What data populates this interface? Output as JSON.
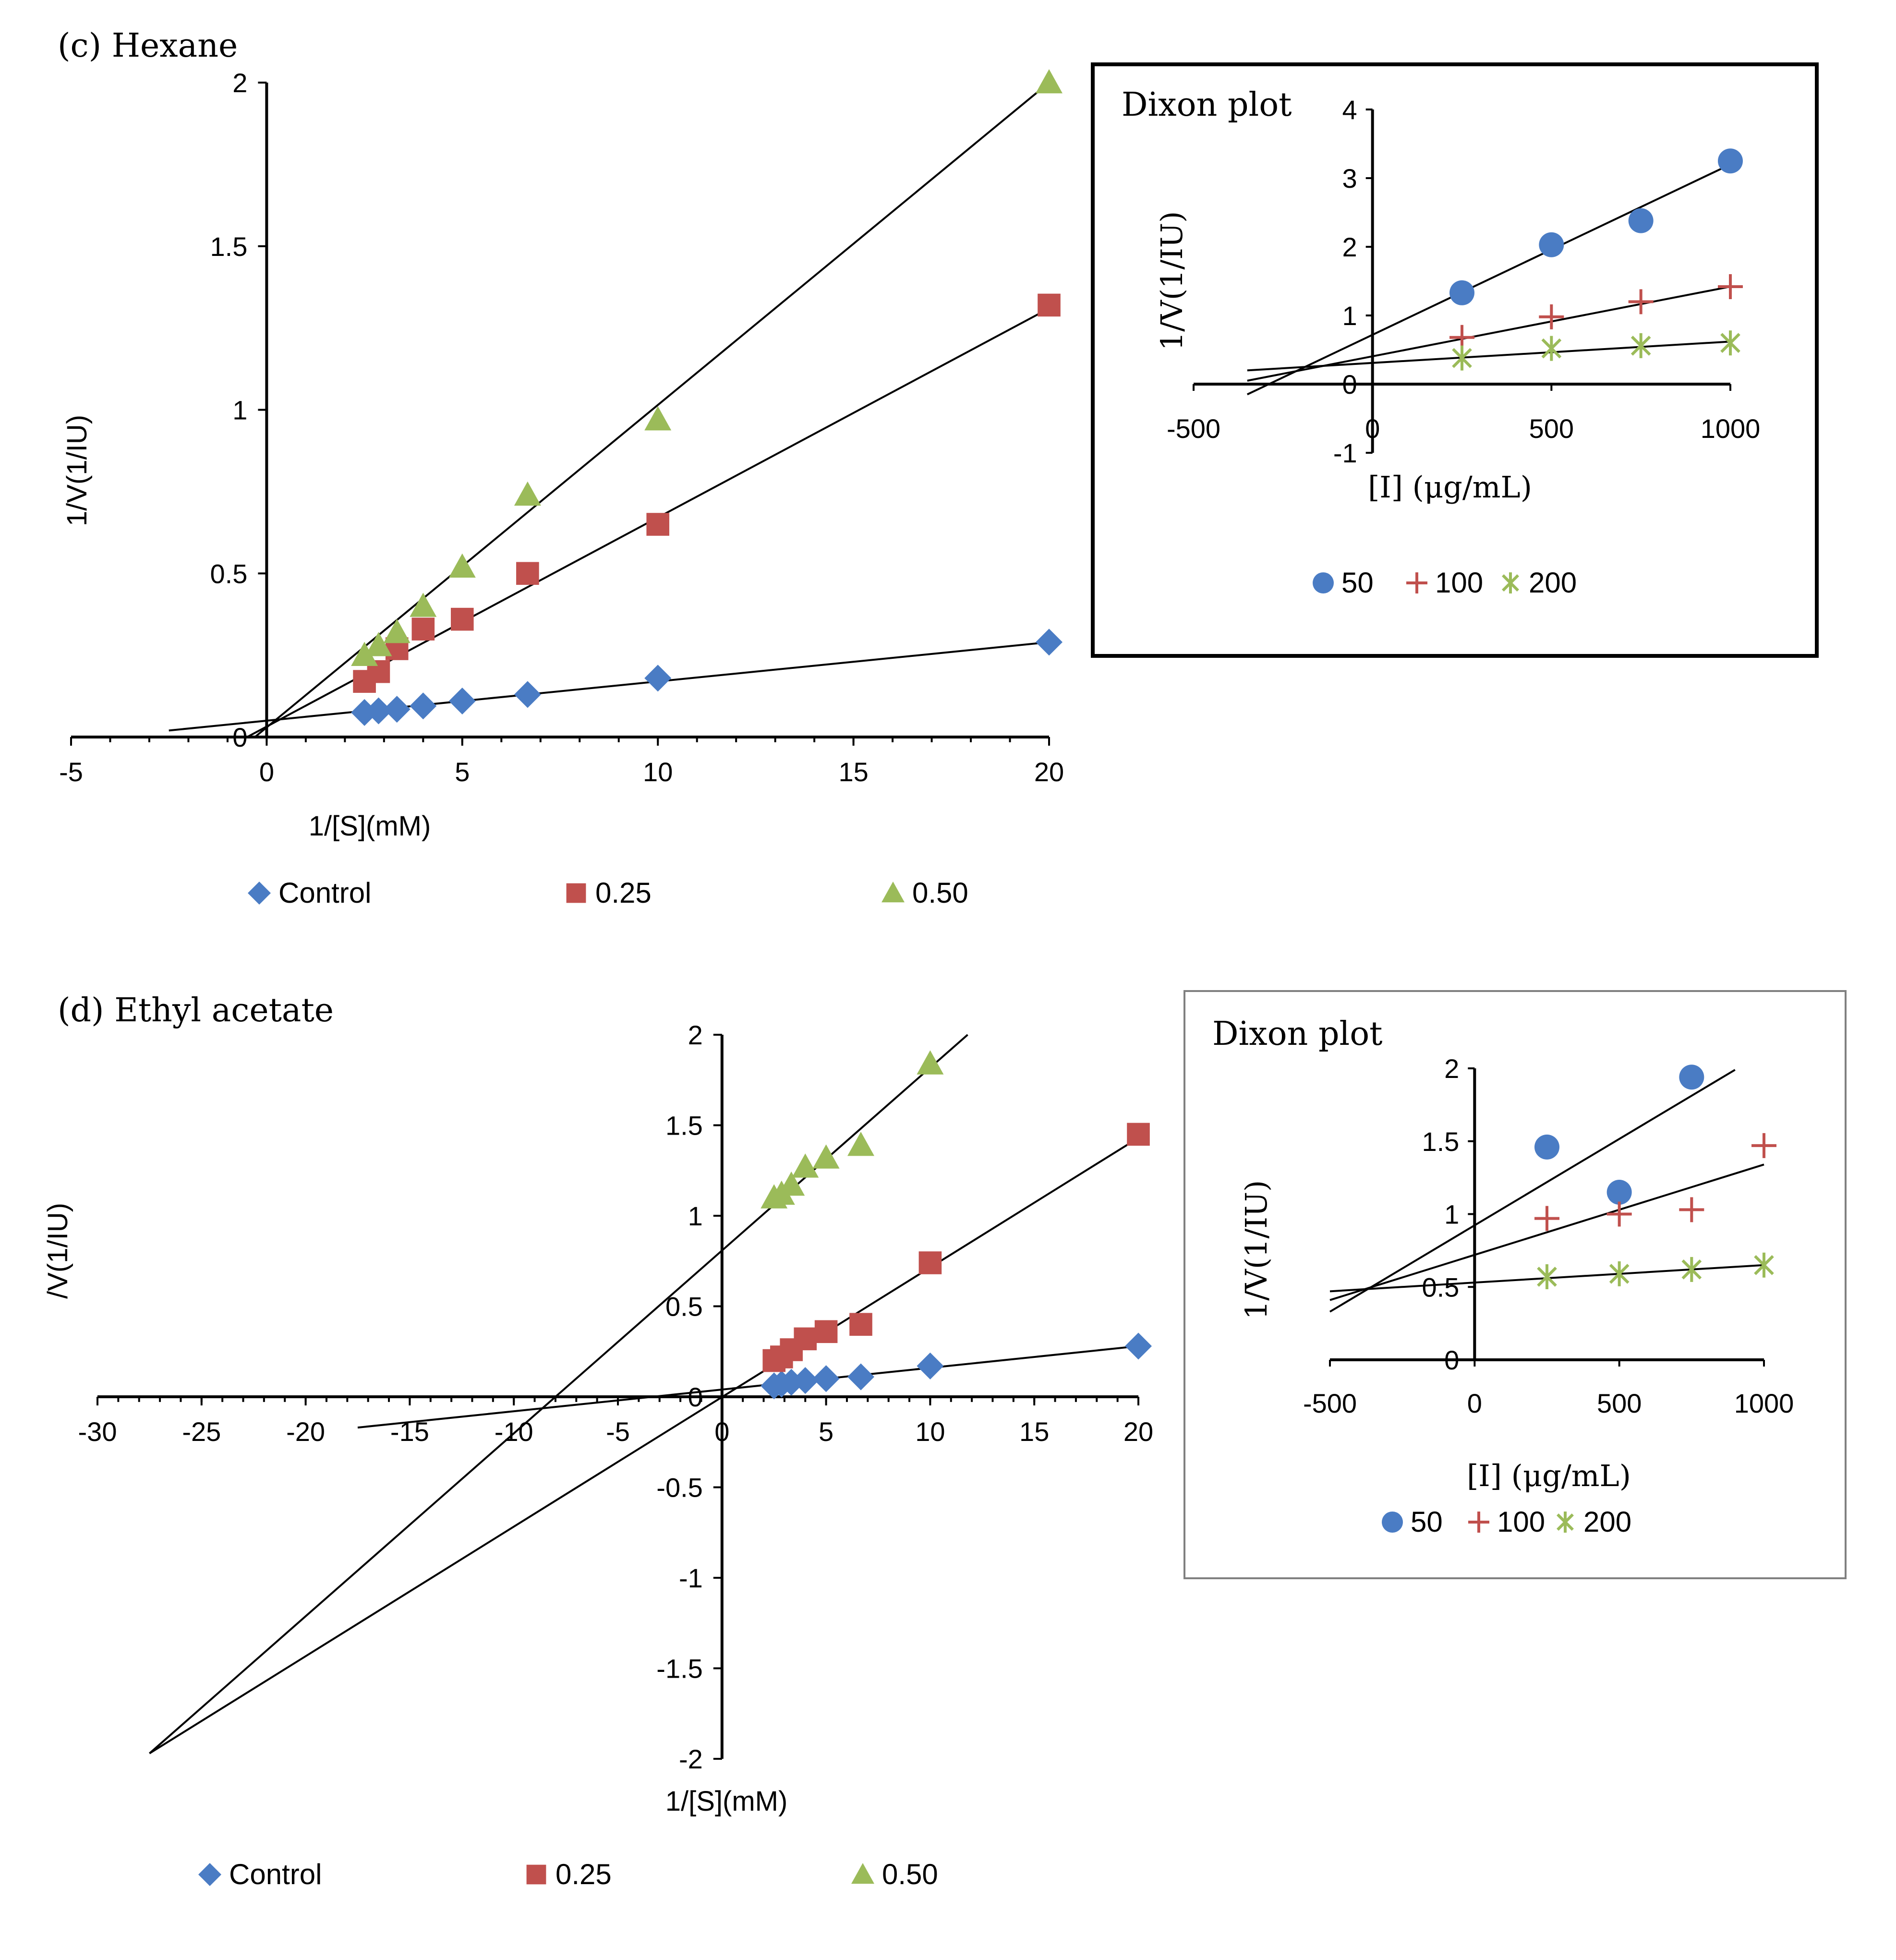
{
  "colors": {
    "blue": "#4a7cc4",
    "red": "#c0504d",
    "green": "#9bbb59",
    "axis": "#000000"
  },
  "chart_data": [
    {
      "id": "hexane",
      "type": "scatter",
      "panel_label": "(c) Hexane",
      "title": "",
      "xlabel": "1/[S](mM)",
      "ylabel": "1/V(1/IU)",
      "xlim": [
        -5,
        20
      ],
      "ylim": [
        0,
        2
      ],
      "xticks": [
        -5,
        0,
        5,
        10,
        15,
        20
      ],
      "yticks": [
        0,
        0.5,
        1,
        1.5,
        2
      ],
      "xtick_labels": [
        "-5",
        "0",
        "5",
        "10",
        "15",
        "20"
      ],
      "ytick_labels": [
        "0",
        "0.5",
        "1",
        "1.5",
        "2"
      ],
      "legend": [
        "Control",
        "0.25",
        "0.50"
      ],
      "series": [
        {
          "name": "Control",
          "marker": "diamond",
          "color": "#4a7cc4",
          "x": [
            2.5,
            2.86,
            3.33,
            4,
            5,
            6.67,
            10,
            20
          ],
          "y": [
            0.075,
            0.08,
            0.085,
            0.095,
            0.11,
            0.13,
            0.18,
            0.29
          ],
          "fit": {
            "x": [
              -2.5,
              20
            ],
            "y": [
              0.02,
              0.29
            ]
          }
        },
        {
          "name": "0.25",
          "marker": "square",
          "color": "#c0504d",
          "x": [
            2.5,
            2.86,
            3.33,
            4,
            5,
            6.67,
            10,
            20
          ],
          "y": [
            0.17,
            0.2,
            0.27,
            0.33,
            0.36,
            0.5,
            0.65,
            1.32
          ],
          "fit": {
            "x": [
              -0.5,
              20
            ],
            "y": [
              0.0,
              1.31
            ]
          }
        },
        {
          "name": "0.50",
          "marker": "triangle",
          "color": "#9bbb59",
          "x": [
            2.5,
            2.86,
            3.33,
            4,
            5,
            6.67,
            10,
            20
          ],
          "y": [
            0.25,
            0.28,
            0.32,
            0.4,
            0.52,
            0.74,
            0.97,
            2.0
          ],
          "fit": {
            "x": [
              -0.3,
              20
            ],
            "y": [
              0.0,
              2.0
            ]
          }
        }
      ]
    },
    {
      "id": "hexane-dixon",
      "type": "scatter",
      "title": "Dixon plot",
      "xlabel": "[I] (μg/mL)",
      "ylabel": "1/V(1/IU)",
      "xlim": [
        -500,
        1000
      ],
      "ylim": [
        -1,
        4
      ],
      "xticks": [
        -500,
        0,
        500,
        1000
      ],
      "yticks": [
        -1,
        0,
        1,
        2,
        3,
        4
      ],
      "xtick_labels": [
        "-500",
        "0",
        "500",
        "1000"
      ],
      "ytick_labels": [
        "-1",
        "0",
        "1",
        "2",
        "3",
        "4"
      ],
      "legend": [
        "50",
        "100",
        "200"
      ],
      "series": [
        {
          "name": "50",
          "marker": "circle",
          "color": "#4a7cc4",
          "x": [
            250,
            500,
            750,
            1000
          ],
          "y": [
            1.33,
            2.03,
            2.38,
            3.25
          ],
          "fit": {
            "x": [
              -350,
              1000
            ],
            "y": [
              -0.15,
              3.2
            ]
          }
        },
        {
          "name": "100",
          "marker": "plus",
          "color": "#c0504d",
          "x": [
            250,
            500,
            750,
            1000
          ],
          "y": [
            0.68,
            0.98,
            1.2,
            1.42
          ],
          "fit": {
            "x": [
              -350,
              1000
            ],
            "y": [
              0.05,
              1.42
            ]
          }
        },
        {
          "name": "200",
          "marker": "asterisk",
          "color": "#9bbb59",
          "x": [
            250,
            500,
            750,
            1000
          ],
          "y": [
            0.38,
            0.52,
            0.56,
            0.6
          ],
          "fit": {
            "x": [
              -350,
              1000
            ],
            "y": [
              0.2,
              0.62
            ]
          }
        }
      ]
    },
    {
      "id": "ethyl-acetate",
      "type": "scatter",
      "panel_label": "(d)  Ethyl acetate",
      "title": "",
      "xlabel": "1/[S](mM)",
      "ylabel": "/V(1/IU)",
      "xlim": [
        -30,
        20
      ],
      "ylim": [
        -2,
        2
      ],
      "xticks": [
        -30,
        -25,
        -20,
        -15,
        -10,
        -5,
        0,
        5,
        10,
        15,
        20
      ],
      "yticks": [
        -2,
        -1.5,
        -1,
        -0.5,
        0,
        0.5,
        1,
        1.5,
        2
      ],
      "xtick_labels": [
        "-30",
        "-25",
        "-20",
        "-15",
        "-10",
        "-5",
        "0",
        "5",
        "10",
        "15",
        "20"
      ],
      "ytick_labels": [
        "-2",
        "-1.5",
        "-1",
        "-0.5",
        "0",
        "0.5",
        "1",
        "1.5",
        "2"
      ],
      "legend": [
        "Control",
        "0.25",
        "0.50"
      ],
      "series": [
        {
          "name": "Control",
          "marker": "diamond",
          "color": "#4a7cc4",
          "x": [
            2.5,
            2.86,
            3.33,
            4,
            5,
            6.67,
            10,
            20
          ],
          "y": [
            0.06,
            0.07,
            0.08,
            0.09,
            0.1,
            0.11,
            0.17,
            0.28
          ],
          "fit": {
            "x": [
              -17.5,
              20
            ],
            "y": [
              -0.17,
              0.28
            ]
          }
        },
        {
          "name": "0.25",
          "marker": "square",
          "color": "#c0504d",
          "x": [
            2.5,
            2.86,
            3.33,
            4,
            5,
            6.67,
            10,
            20
          ],
          "y": [
            0.2,
            0.22,
            0.26,
            0.32,
            0.36,
            0.4,
            0.74,
            1.45
          ],
          "fit": {
            "x": [
              -27.5,
              20
            ],
            "y": [
              -1.97,
              1.43
            ]
          }
        },
        {
          "name": "0.50",
          "marker": "triangle",
          "color": "#9bbb59",
          "x": [
            2.5,
            2.86,
            3.33,
            4,
            5,
            6.67,
            10
          ],
          "y": [
            1.1,
            1.12,
            1.17,
            1.27,
            1.32,
            1.39,
            1.84
          ],
          "fit": {
            "x": [
              -27.5,
              11.8
            ],
            "y": [
              -1.97,
              2.0
            ]
          }
        }
      ]
    },
    {
      "id": "ethyl-acetate-dixon",
      "type": "scatter",
      "title": "Dixon plot",
      "xlabel": "[I] (μg/mL)",
      "ylabel": "1/V(1/IU)",
      "xlim": [
        -500,
        1000
      ],
      "ylim": [
        0,
        2
      ],
      "xticks": [
        -500,
        0,
        500,
        1000
      ],
      "yticks": [
        0,
        0.5,
        1,
        1.5,
        2
      ],
      "xtick_labels": [
        "-500",
        "0",
        "500",
        "1000"
      ],
      "ytick_labels": [
        "0",
        "0.5",
        "1",
        "1.5",
        "2"
      ],
      "legend": [
        "50",
        "100",
        "200"
      ],
      "series": [
        {
          "name": "50",
          "marker": "circle",
          "color": "#4a7cc4",
          "x": [
            250,
            500,
            750
          ],
          "y": [
            1.46,
            1.15,
            1.94
          ],
          "fit": {
            "x": [
              -500,
              900
            ],
            "y": [
              0.33,
              1.99
            ]
          }
        },
        {
          "name": "100",
          "marker": "plus",
          "color": "#c0504d",
          "x": [
            250,
            500,
            750,
            1000
          ],
          "y": [
            0.97,
            1.0,
            1.03,
            1.47
          ],
          "fit": {
            "x": [
              -500,
              1000
            ],
            "y": [
              0.41,
              1.34
            ]
          }
        },
        {
          "name": "200",
          "marker": "asterisk",
          "color": "#9bbb59",
          "x": [
            250,
            500,
            750,
            1000
          ],
          "y": [
            0.57,
            0.59,
            0.62,
            0.65
          ],
          "fit": {
            "x": [
              -500,
              1000
            ],
            "y": [
              0.47,
              0.65
            ]
          }
        }
      ]
    }
  ]
}
